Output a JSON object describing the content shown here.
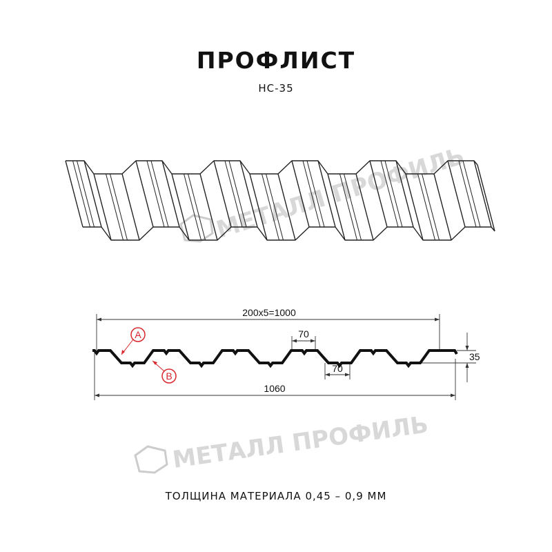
{
  "header": {
    "title": "ПРОФЛИСТ",
    "subtitle": "НС-35"
  },
  "watermark": "МЕТАЛЛ ПРОФИЛЬ",
  "dimensions": {
    "pitch": "200x5=1000",
    "top_flat": "70",
    "bottom_flat": "70",
    "height": "35",
    "total_width": "1060"
  },
  "callouts": {
    "a": "A",
    "b": "B"
  },
  "colors": {
    "line": "#111111",
    "callout": "#d9262c",
    "watermark": "#cccccc"
  },
  "footer": {
    "thickness": "ТОЛЩИНА МАТЕРИАЛА 0,45 – 0,9 ММ"
  }
}
